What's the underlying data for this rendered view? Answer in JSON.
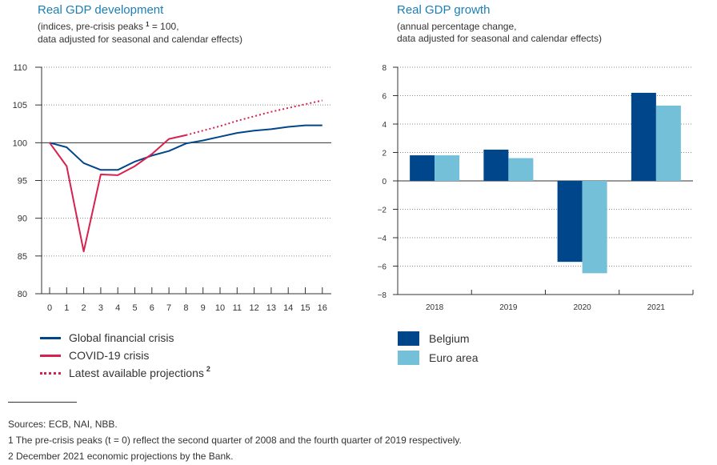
{
  "left_chart": {
    "title": "Real GDP development",
    "subtitle_line1": "(indices, pre-crisis peaks",
    "subtitle_sup": "1",
    "subtitle_line1_end": " = 100,",
    "subtitle_line2": "data adjusted for seasonal and calendar effects)"
  },
  "right_chart": {
    "title": "Real GDP growth",
    "subtitle_line1": "(annual percentage change,",
    "subtitle_line2": "data adjusted for seasonal and calendar effects)"
  },
  "legend_left": [
    {
      "label": "Global financial crisis",
      "color": "#00468b",
      "style": "solid"
    },
    {
      "label": "COVID-19 crisis",
      "color": "#d7214e",
      "style": "solid"
    },
    {
      "label": "Latest available projections",
      "sup": "2",
      "color": "#d7214e",
      "style": "dotted"
    }
  ],
  "legend_right": [
    {
      "label": "Belgium",
      "color": "#00468b"
    },
    {
      "label": "Euro area",
      "color": "#73c0d8"
    }
  ],
  "footnotes": {
    "sources": "Sources: ECB, NAI, NBB.",
    "note1": "1  The pre-crisis peaks (t = 0) reflect the second quarter of 2008 and the fourth quarter of 2019 respectively.",
    "note2": "2  December 2021 economic projections by the Bank."
  },
  "chart_data": [
    {
      "type": "line",
      "title": "Real GDP development",
      "x": [
        0,
        1,
        2,
        3,
        4,
        5,
        6,
        7,
        8,
        9,
        10,
        11,
        12,
        13,
        14,
        15,
        16
      ],
      "xlim": [
        0,
        16
      ],
      "ylim": [
        80,
        110
      ],
      "yticks": [
        80,
        85,
        90,
        95,
        100,
        105,
        110
      ],
      "reference_line": 100,
      "grid": "dotted horizontal",
      "series": [
        {
          "name": "Global financial crisis",
          "color": "#00468b",
          "style": "solid",
          "x": [
            0,
            1,
            2,
            3,
            4,
            5,
            6,
            7,
            8,
            9,
            10,
            11,
            12,
            13,
            14,
            15,
            16
          ],
          "values": [
            100,
            99.4,
            97.3,
            96.4,
            96.4,
            97.5,
            98.3,
            98.9,
            99.9,
            100.3,
            100.8,
            101.3,
            101.6,
            101.8,
            102.1,
            102.3,
            102.3
          ]
        },
        {
          "name": "COVID-19 crisis",
          "color": "#d7214e",
          "style": "solid",
          "x": [
            0,
            1,
            2,
            3,
            4,
            5,
            6,
            7,
            8
          ],
          "values": [
            100,
            96.9,
            85.6,
            95.8,
            95.7,
            96.9,
            98.5,
            100.5,
            101.0
          ]
        },
        {
          "name": "Latest available projections",
          "color": "#d7214e",
          "style": "dotted",
          "x": [
            8,
            9,
            10,
            11,
            12,
            13,
            14,
            15,
            16
          ],
          "values": [
            101.0,
            101.6,
            102.2,
            102.9,
            103.5,
            104.1,
            104.6,
            105.1,
            105.6
          ]
        }
      ]
    },
    {
      "type": "bar",
      "title": "Real GDP growth",
      "categories": [
        "2018",
        "2019",
        "2020",
        "2021"
      ],
      "ylim": [
        -8,
        8
      ],
      "yticks": [
        -8,
        -6,
        -4,
        -2,
        0,
        2,
        4,
        6,
        8
      ],
      "grid": "dotted horizontal",
      "series": [
        {
          "name": "Belgium",
          "color": "#00468b",
          "values": [
            1.8,
            2.2,
            -5.7,
            6.2
          ]
        },
        {
          "name": "Euro area",
          "color": "#73c0d8",
          "values": [
            1.8,
            1.6,
            -6.5,
            5.3
          ]
        }
      ]
    }
  ]
}
